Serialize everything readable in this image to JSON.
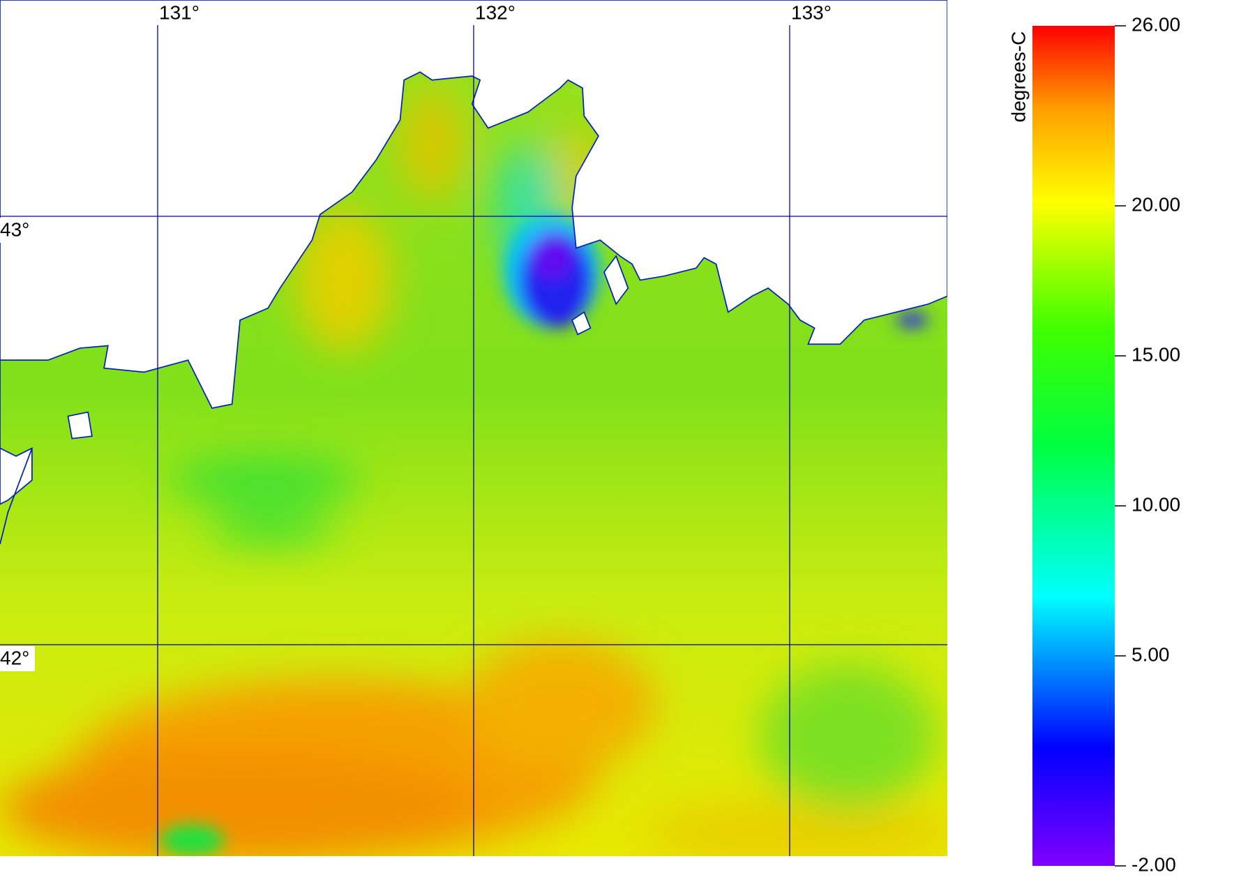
{
  "map": {
    "lon_lines": [
      {
        "value": 131,
        "label": "131°"
      },
      {
        "value": 132,
        "label": "132°"
      },
      {
        "value": 133,
        "label": "133°"
      }
    ],
    "lat_lines": [
      {
        "value": 43,
        "label": "43°"
      },
      {
        "value": 42,
        "label": "42°"
      }
    ]
  },
  "colorbar": {
    "label": "degrees-C",
    "range": [
      -2,
      26
    ],
    "ticks": [
      {
        "value": 26,
        "label": "26.00"
      },
      {
        "value": 20,
        "label": "20.00"
      },
      {
        "value": 15,
        "label": "15.00"
      },
      {
        "value": 10,
        "label": "10.00"
      },
      {
        "value": 5,
        "label": "5.00"
      },
      {
        "value": -2,
        "label": "-2.00"
      }
    ]
  }
}
